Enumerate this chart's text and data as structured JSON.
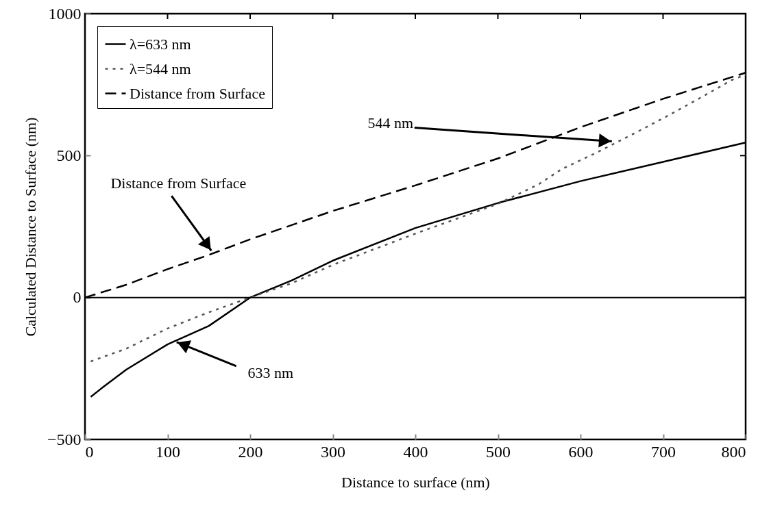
{
  "chart_data": {
    "type": "line",
    "xlabel": "Distance to surface (nm)",
    "ylabel": "Calculated Distance to Surface (nm)",
    "xlim": [
      0,
      800
    ],
    "xticks": [
      0,
      100,
      200,
      300,
      400,
      500,
      600,
      700,
      800
    ],
    "ylim": [
      -500,
      1000
    ],
    "yticks": [
      -500,
      0,
      500,
      1000
    ],
    "grid": false,
    "legend": "top left",
    "series": [
      {
        "name": "λ=633 nm",
        "color": "#000000",
        "line_style": "solid",
        "x": [
          7,
          20,
          50,
          100,
          150,
          200,
          250,
          300,
          400,
          500,
          600,
          700,
          800
        ],
        "values": [
          -350,
          -320,
          -254,
          -165,
          -100,
          0,
          60,
          130,
          245,
          333,
          410,
          478,
          546
        ]
      },
      {
        "name": "λ=544 nm",
        "color": "#555555",
        "line_style": "dotted",
        "x": [
          7,
          50,
          100,
          150,
          200,
          250,
          300,
          400,
          500,
          550,
          577,
          617,
          671,
          710,
          746,
          783,
          800
        ],
        "values": [
          -225,
          -180,
          -109,
          -52,
          0,
          50,
          115,
          225,
          330,
          400,
          452,
          507,
          587,
          647,
          705,
          766,
          785
        ]
      },
      {
        "name": "Distance from Surface",
        "color": "#000000",
        "line_style": "dashed",
        "x": [
          0,
          50,
          100,
          150,
          200,
          300,
          400,
          500,
          600,
          700,
          800
        ],
        "values": [
          0,
          45,
          100,
          150,
          205,
          305,
          395,
          490,
          600,
          700,
          792
        ]
      }
    ],
    "ref_lines": [
      {
        "axis": "y",
        "value": 0,
        "color": "#000000",
        "line_style": "solid"
      }
    ],
    "annotations": [
      {
        "text": "Distance from Surface",
        "x": 153,
        "y": 165
      },
      {
        "text": "633 nm",
        "x": 111,
        "y": -157
      },
      {
        "text": "544 nm",
        "x": 638,
        "y": 550
      }
    ]
  }
}
